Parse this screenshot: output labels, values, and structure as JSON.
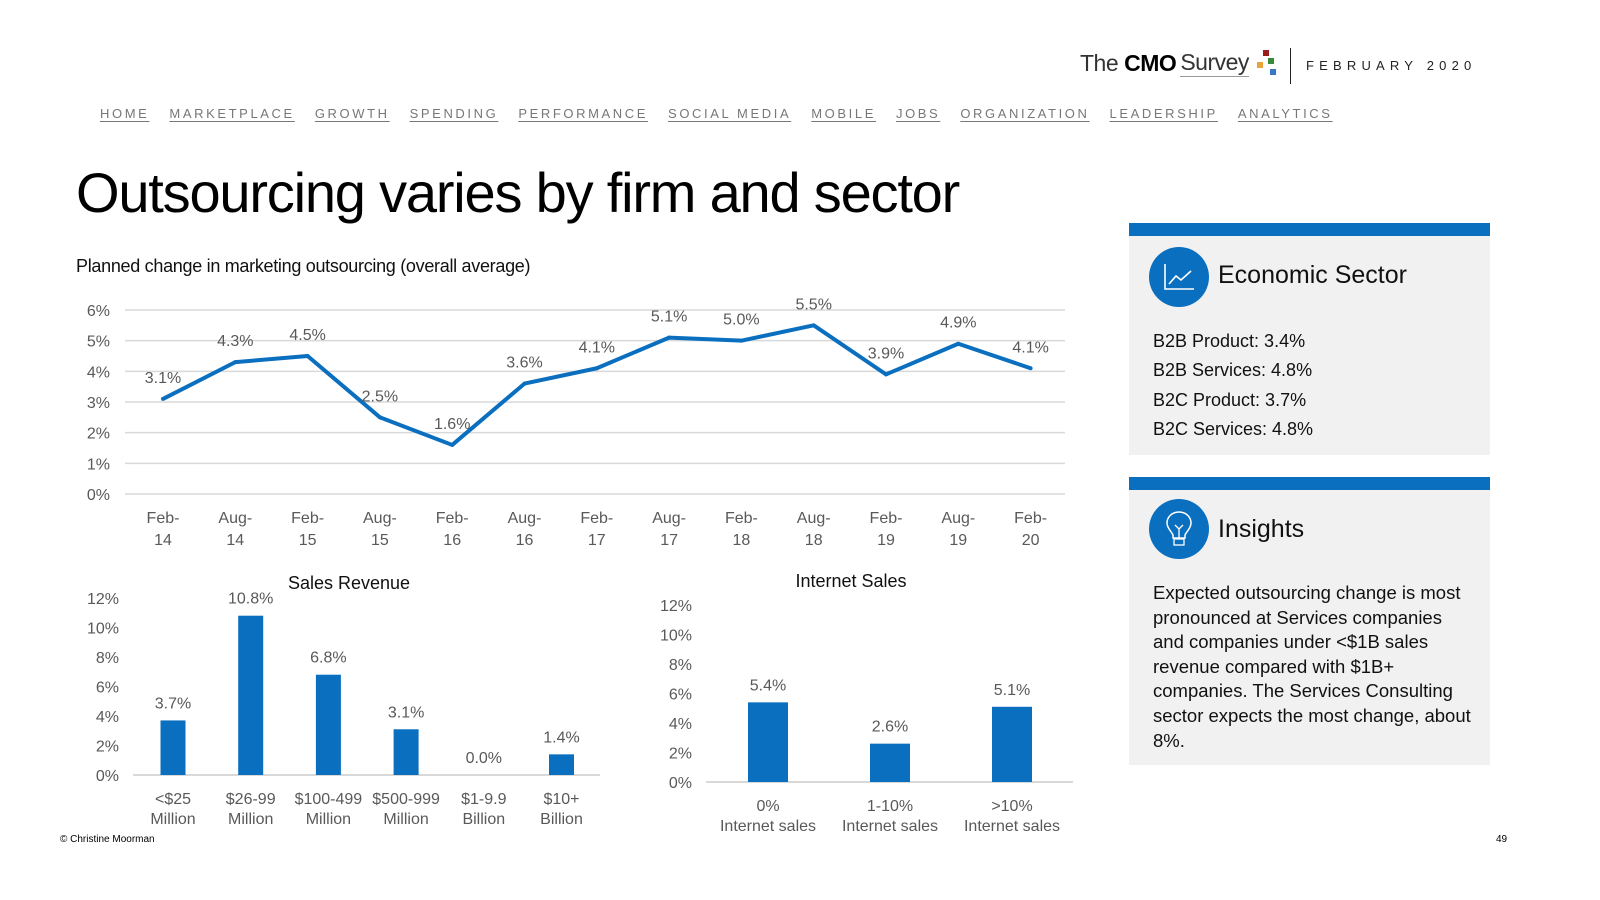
{
  "header": {
    "logo": {
      "word1": "The",
      "word2": "CMO",
      "word3": "Survey",
      "registered": "®",
      "dot_colors": [
        "#9b1c1c",
        "#e8a33d",
        "#3a8a3a",
        "#3b78c4"
      ]
    },
    "date": "FEBRUARY 2020"
  },
  "nav": {
    "items": [
      {
        "label": "HOME"
      },
      {
        "label": "MARKETPLACE"
      },
      {
        "label": "GROWTH"
      },
      {
        "label": "SPENDING"
      },
      {
        "label": "PERFORMANCE"
      },
      {
        "label": "SOCIAL MEDIA"
      },
      {
        "label": "MOBILE"
      },
      {
        "label": "JOBS"
      },
      {
        "label": "ORGANIZATION"
      },
      {
        "label": "LEADERSHIP"
      },
      {
        "label": "ANALYTICS"
      }
    ]
  },
  "page": {
    "title": "Outsourcing varies by firm and sector",
    "subtitle": "Planned change in marketing outsourcing (overall average)"
  },
  "colors": {
    "accent": "#0b6fbf",
    "panel_bg": "#f1f1f1",
    "grid": "#d9d9d9",
    "axis_text": "#595959"
  },
  "chart_data": [
    {
      "id": "overall-trend",
      "type": "line",
      "title": "Planned change in marketing outsourcing (overall average)",
      "categories": [
        [
          "Feb-",
          "14"
        ],
        [
          "Aug-",
          "14"
        ],
        [
          "Feb-",
          "15"
        ],
        [
          "Aug-",
          "15"
        ],
        [
          "Feb-",
          "16"
        ],
        [
          "Aug-",
          "16"
        ],
        [
          "Feb-",
          "17"
        ],
        [
          "Aug-",
          "17"
        ],
        [
          "Feb-",
          "18"
        ],
        [
          "Aug-",
          "18"
        ],
        [
          "Feb-",
          "19"
        ],
        [
          "Aug-",
          "19"
        ],
        [
          "Feb-",
          "20"
        ]
      ],
      "values": [
        3.1,
        4.3,
        4.5,
        2.5,
        1.6,
        3.6,
        4.1,
        5.1,
        5.0,
        5.5,
        3.9,
        4.9,
        4.1
      ],
      "labels": [
        "3.1%",
        "4.3%",
        "4.5%",
        "2.5%",
        "1.6%",
        "3.6%",
        "4.1%",
        "5.1%",
        "5.0%",
        "5.5%",
        "3.9%",
        "4.9%",
        "4.1%"
      ],
      "yticks": [
        "0%",
        "1%",
        "2%",
        "3%",
        "4%",
        "5%",
        "6%"
      ],
      "ylim": [
        0,
        6
      ],
      "grid": true,
      "xlabel": "",
      "ylabel": ""
    },
    {
      "id": "sales-revenue",
      "type": "bar",
      "title": "Sales Revenue",
      "categories": [
        [
          "<$25",
          "Million"
        ],
        [
          "$26-99",
          "Million"
        ],
        [
          "$100-499",
          "Million"
        ],
        [
          "$500-999",
          "Million"
        ],
        [
          "$1-9.9",
          "Billion"
        ],
        [
          "$10+",
          "Billion"
        ]
      ],
      "values": [
        3.7,
        10.8,
        6.8,
        3.1,
        0.0,
        1.4
      ],
      "labels": [
        "3.7%",
        "10.8%",
        "6.8%",
        "3.1%",
        "0.0%",
        "1.4%"
      ],
      "yticks": [
        "0%",
        "2%",
        "4%",
        "6%",
        "8%",
        "10%",
        "12%"
      ],
      "ylim": [
        0,
        12
      ],
      "grid": false,
      "xlabel": "",
      "ylabel": ""
    },
    {
      "id": "internet-sales",
      "type": "bar",
      "title": "Internet Sales",
      "categories": [
        [
          "0%",
          "Internet sales"
        ],
        [
          "1-10%",
          "Internet sales"
        ],
        [
          ">10%",
          "Internet sales"
        ]
      ],
      "values": [
        5.4,
        2.6,
        5.1
      ],
      "labels": [
        "5.4%",
        "2.6%",
        "5.1%"
      ],
      "yticks": [
        "0%",
        "2%",
        "4%",
        "6%",
        "8%",
        "10%",
        "12%"
      ],
      "ylim": [
        0,
        12
      ],
      "grid": false,
      "xlabel": "",
      "ylabel": ""
    }
  ],
  "sector_panel": {
    "title": "Economic Sector",
    "icon": "line-chart-icon",
    "items": [
      "B2B Product: 3.4%",
      "B2B Services: 4.8%",
      "B2C Product: 3.7%",
      "B2C Services: 4.8%"
    ]
  },
  "insights_panel": {
    "title": "Insights",
    "icon": "lightbulb-icon",
    "text": "Expected outsourcing change is most pronounced at Services companies and companies under <$1B sales revenue compared with $1B+ companies. The Services Consulting sector expects the most change, about 8%."
  },
  "footer": {
    "copyright": "© Christine Moorman",
    "page_number": "49"
  }
}
